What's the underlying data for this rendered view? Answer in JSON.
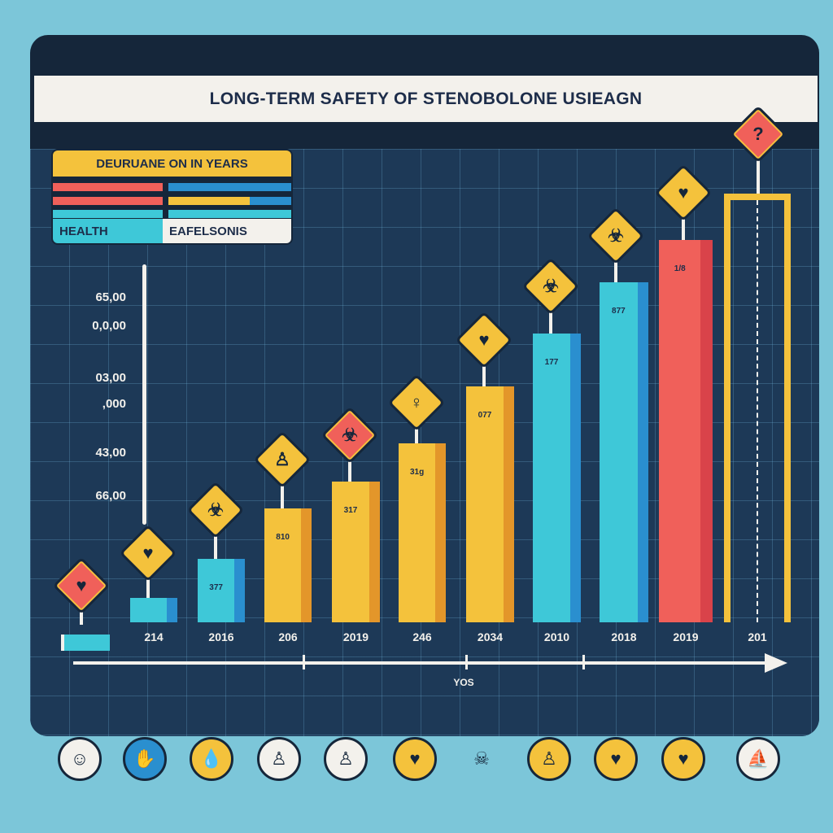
{
  "title": "LONG-TERM SAFETY OF STENOBOLONE USIEAGN",
  "legend": {
    "header": "DEURUANE ON IN YEARS",
    "left_label": "HEALTH",
    "right_label": "EAFELSONIS"
  },
  "colors": {
    "yellow": "#f4c23c",
    "teal": "#3ec8d8",
    "blue": "#2a8fcf",
    "red": "#f0605a",
    "navy": "#15263a"
  },
  "chart_data": {
    "type": "bar",
    "title": "LONG-TERM SAFETY OF STENOBOLONE USIEAGN",
    "xlabel": "YOS",
    "ylabel": "",
    "y_tick_labels": [
      "65,00",
      "0,0,00",
      "03,00",
      ",000",
      "43,00",
      "66,00"
    ],
    "categories": [
      "214",
      "2016",
      "206",
      "2019",
      "246",
      "2034",
      "2010",
      "2018",
      "2019",
      "201"
    ],
    "values": [
      30,
      78,
      140,
      173,
      220,
      290,
      355,
      418,
      470,
      527
    ],
    "bar_colors": [
      "teal",
      "teal",
      "yellow",
      "yellow",
      "yellow",
      "yellow",
      "teal",
      "teal",
      "red",
      "yellow"
    ],
    "bar_labels": [
      "",
      "377",
      "810",
      "317",
      "31g",
      "077",
      "177",
      "877",
      "1/8",
      ""
    ],
    "grid": true,
    "legend_position": "top-left"
  },
  "signs": [
    {
      "color": "red",
      "icon": "broken-heart-icon",
      "glyph": "♥"
    },
    {
      "color": "yellow",
      "icon": "heart-bolt-icon",
      "glyph": "♥"
    },
    {
      "color": "yellow",
      "icon": "biohazard-icon",
      "glyph": "☣"
    },
    {
      "color": "yellow",
      "icon": "person-icon",
      "glyph": "♙"
    },
    {
      "color": "red",
      "icon": "biohazard-icon",
      "glyph": "☣"
    },
    {
      "color": "yellow",
      "icon": "person-icon",
      "glyph": "♀"
    },
    {
      "color": "yellow",
      "icon": "heart-icon",
      "glyph": "♥"
    },
    {
      "color": "yellow",
      "icon": "biohazard-icon",
      "glyph": "☣"
    },
    {
      "color": "yellow",
      "icon": "biohazard-icon",
      "glyph": "☣"
    },
    {
      "color": "yellow",
      "icon": "broken-heart-icon",
      "glyph": "♥"
    },
    {
      "color": "red",
      "icon": "question-icon",
      "glyph": "?"
    }
  ],
  "bottom_icons": [
    {
      "icon": "person-icon",
      "color": "#f3f1ec",
      "glyph": "☺"
    },
    {
      "icon": "hand-icon",
      "color": "#2a8fcf",
      "glyph": "✋"
    },
    {
      "icon": "drop-icon",
      "color": "#f4c23c",
      "glyph": "💧"
    },
    {
      "icon": "person-icon",
      "color": "#f3f1ec",
      "glyph": "♙"
    },
    {
      "icon": "person-icon",
      "color": "#f3f1ec",
      "glyph": "♙"
    },
    {
      "icon": "broken-heart-icon",
      "color": "#f4c23c",
      "glyph": "♥"
    },
    {
      "icon": "skull-icon",
      "color": "transparent",
      "glyph": "☠"
    },
    {
      "icon": "person-icon",
      "color": "#f4c23c",
      "glyph": "♙"
    },
    {
      "icon": "heart-icon",
      "color": "#f4c23c",
      "glyph": "♥"
    },
    {
      "icon": "heart-icon",
      "color": "#f4c23c",
      "glyph": "♥"
    },
    {
      "icon": "boat-icon",
      "color": "#f3f1ec",
      "glyph": "⛵"
    }
  ]
}
